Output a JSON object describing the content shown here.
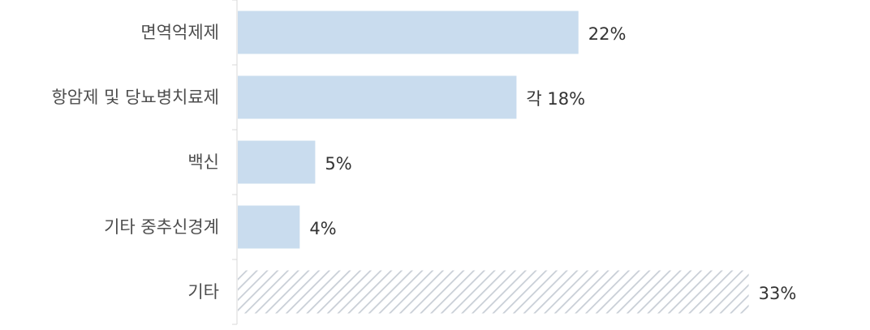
{
  "chart_data": {
    "type": "bar",
    "orientation": "horizontal",
    "categories": [
      "면역억제제",
      "항암제 및 당뇨병치료제",
      "백신",
      "기타 중추신경계",
      "기타"
    ],
    "values": [
      22,
      18,
      5,
      4,
      33
    ],
    "value_labels": [
      "22%",
      "각 18%",
      "5%",
      "4%",
      "33%"
    ],
    "unit": "%",
    "xlim": [
      0,
      38
    ],
    "grid": false,
    "legend": "none",
    "bar_color": "#c9dcee",
    "hatched_categories": [
      "기타"
    ],
    "hatch_color": "#c8ced6"
  }
}
